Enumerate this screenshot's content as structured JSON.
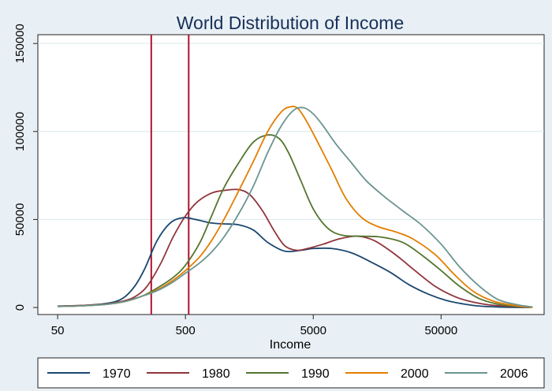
{
  "chart_data": {
    "type": "line",
    "title": "World Distribution of Income",
    "xlabel": "Income",
    "ylabel": "",
    "x_scale": "log10",
    "xlim": [
      35,
      320000
    ],
    "ylim": [
      -4000,
      155000
    ],
    "x_ticks": [
      {
        "value": 50,
        "label": "50"
      },
      {
        "value": 500,
        "label": "500"
      },
      {
        "value": 5000,
        "label": "5000"
      },
      {
        "value": 50000,
        "label": "50000"
      }
    ],
    "y_ticks": [
      {
        "value": 0,
        "label": "0"
      },
      {
        "value": 50000,
        "label": "50000"
      },
      {
        "value": 100000,
        "label": "100000"
      },
      {
        "value": 150000,
        "label": "150000"
      }
    ],
    "grid": "horizontal",
    "reference_lines_x": [
      270,
      530
    ],
    "reference_line_color": "#b0112e",
    "legend": {
      "position": "bottom",
      "entries": [
        "1970",
        "1980",
        "1990",
        "2000",
        "2006"
      ]
    },
    "series": [
      {
        "name": "1970",
        "color": "#1a476f",
        "points": [
          [
            50,
            800
          ],
          [
            80,
            1200
          ],
          [
            120,
            2300
          ],
          [
            160,
            5000
          ],
          [
            200,
            12000
          ],
          [
            240,
            22000
          ],
          [
            300,
            38000
          ],
          [
            380,
            48000
          ],
          [
            480,
            51000
          ],
          [
            600,
            50000
          ],
          [
            800,
            48000
          ],
          [
            1000,
            47500
          ],
          [
            1300,
            47000
          ],
          [
            1700,
            44000
          ],
          [
            2200,
            37000
          ],
          [
            3000,
            32000
          ],
          [
            4000,
            32500
          ],
          [
            5000,
            33500
          ],
          [
            7000,
            33500
          ],
          [
            10000,
            31000
          ],
          [
            14000,
            26000
          ],
          [
            20000,
            20000
          ],
          [
            28000,
            13000
          ],
          [
            40000,
            7500
          ],
          [
            55000,
            4000
          ],
          [
            75000,
            2000
          ],
          [
            100000,
            800
          ],
          [
            150000,
            200
          ],
          [
            250000,
            0
          ]
        ]
      },
      {
        "name": "1980",
        "color": "#90353b",
        "points": [
          [
            50,
            800
          ],
          [
            80,
            1200
          ],
          [
            120,
            2000
          ],
          [
            160,
            3500
          ],
          [
            200,
            6000
          ],
          [
            250,
            12000
          ],
          [
            320,
            25000
          ],
          [
            400,
            40000
          ],
          [
            500,
            52000
          ],
          [
            620,
            60000
          ],
          [
            800,
            65000
          ],
          [
            1000,
            66500
          ],
          [
            1300,
            67000
          ],
          [
            1600,
            64000
          ],
          [
            2000,
            55000
          ],
          [
            2500,
            43000
          ],
          [
            3000,
            35000
          ],
          [
            3700,
            32500
          ],
          [
            4500,
            33500
          ],
          [
            6000,
            36000
          ],
          [
            8000,
            39000
          ],
          [
            11000,
            40500
          ],
          [
            15000,
            38000
          ],
          [
            22000,
            30000
          ],
          [
            30000,
            22000
          ],
          [
            45000,
            12000
          ],
          [
            65000,
            6000
          ],
          [
            90000,
            3000
          ],
          [
            130000,
            1200
          ],
          [
            250000,
            200
          ]
        ]
      },
      {
        "name": "1990",
        "color": "#55752f",
        "points": [
          [
            50,
            600
          ],
          [
            80,
            1000
          ],
          [
            120,
            1800
          ],
          [
            170,
            3500
          ],
          [
            230,
            6500
          ],
          [
            300,
            11000
          ],
          [
            400,
            17000
          ],
          [
            500,
            24000
          ],
          [
            650,
            37000
          ],
          [
            800,
            52000
          ],
          [
            1000,
            68000
          ],
          [
            1300,
            82000
          ],
          [
            1700,
            94000
          ],
          [
            2200,
            98000
          ],
          [
            2700,
            96000
          ],
          [
            3200,
            88000
          ],
          [
            4000,
            72000
          ],
          [
            5000,
            56000
          ],
          [
            6500,
            45000
          ],
          [
            8500,
            41000
          ],
          [
            12000,
            40500
          ],
          [
            17000,
            40000
          ],
          [
            25000,
            37000
          ],
          [
            35000,
            30000
          ],
          [
            50000,
            21000
          ],
          [
            70000,
            12000
          ],
          [
            100000,
            5000
          ],
          [
            150000,
            1500
          ],
          [
            250000,
            200
          ]
        ]
      },
      {
        "name": "2000",
        "color": "#e37e00",
        "points": [
          [
            50,
            600
          ],
          [
            80,
            1000
          ],
          [
            120,
            1800
          ],
          [
            170,
            3500
          ],
          [
            230,
            6500
          ],
          [
            300,
            10000
          ],
          [
            400,
            15500
          ],
          [
            500,
            21000
          ],
          [
            650,
            29000
          ],
          [
            800,
            38000
          ],
          [
            1000,
            50000
          ],
          [
            1300,
            66000
          ],
          [
            1700,
            83000
          ],
          [
            2200,
            100000
          ],
          [
            2800,
            111000
          ],
          [
            3300,
            114000
          ],
          [
            3800,
            113000
          ],
          [
            4500,
            105000
          ],
          [
            5500,
            93000
          ],
          [
            7000,
            78000
          ],
          [
            9000,
            62000
          ],
          [
            12000,
            51000
          ],
          [
            16000,
            46000
          ],
          [
            22000,
            43000
          ],
          [
            30000,
            39000
          ],
          [
            45000,
            30000
          ],
          [
            65000,
            18000
          ],
          [
            90000,
            9000
          ],
          [
            130000,
            3500
          ],
          [
            200000,
            800
          ],
          [
            260000,
            0
          ]
        ]
      },
      {
        "name": "2006",
        "color": "#6a9491",
        "points": [
          [
            50,
            600
          ],
          [
            80,
            1000
          ],
          [
            120,
            1800
          ],
          [
            170,
            3500
          ],
          [
            230,
            6500
          ],
          [
            300,
            9500
          ],
          [
            400,
            14500
          ],
          [
            500,
            19500
          ],
          [
            650,
            25500
          ],
          [
            800,
            31500
          ],
          [
            1000,
            40000
          ],
          [
            1300,
            53000
          ],
          [
            1700,
            69000
          ],
          [
            2200,
            88000
          ],
          [
            2800,
            103000
          ],
          [
            3500,
            112000
          ],
          [
            4200,
            113500
          ],
          [
            5000,
            110000
          ],
          [
            6000,
            103000
          ],
          [
            7500,
            93000
          ],
          [
            10000,
            82000
          ],
          [
            13000,
            72000
          ],
          [
            18000,
            63000
          ],
          [
            25000,
            55000
          ],
          [
            35000,
            47000
          ],
          [
            50000,
            36000
          ],
          [
            70000,
            23000
          ],
          [
            100000,
            12000
          ],
          [
            140000,
            4500
          ],
          [
            200000,
            1500
          ],
          [
            260000,
            300
          ]
        ]
      }
    ]
  }
}
